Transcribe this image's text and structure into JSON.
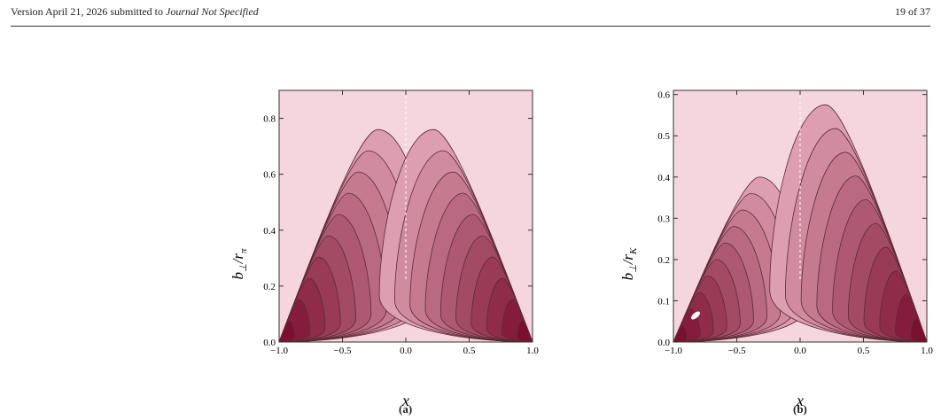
{
  "header": {
    "version": "Version April 21, 2026 submitted to",
    "journal": "Journal Not Specified",
    "page": "19 of 37"
  },
  "figures": [
    {
      "caption": "(a)",
      "ylabel_main": "b",
      "ylabel_sub1": "⊥",
      "ylabel_sep": "/r",
      "ylabel_sub2": "π",
      "xlabel": "x",
      "xticks": [
        "−1.0",
        "−0.5",
        "0.0",
        "0.5",
        "1.0"
      ],
      "yticks": [
        "0.0",
        "0.2",
        "0.4",
        "0.6",
        "0.8"
      ]
    },
    {
      "caption": "(b)",
      "ylabel_main": "b",
      "ylabel_sub1": "⊥",
      "ylabel_sep": "/r",
      "ylabel_sub2": "K",
      "xlabel": "x",
      "xticks": [
        "−1.0",
        "−0.5",
        "0.0",
        "0.5",
        "1.0"
      ],
      "yticks": [
        "0.0",
        "0.1",
        "0.2",
        "0.3",
        "0.4",
        "0.5",
        "0.6"
      ]
    }
  ],
  "chart_data": [
    {
      "type": "contour",
      "xlim": [
        -1.0,
        1.0
      ],
      "ylim": [
        0.0,
        0.9
      ],
      "xlabel": "x",
      "ylabel": "b⊥/rπ",
      "lobes": [
        {
          "side": "left",
          "peak_x": -0.22,
          "peak_y": 0.76
        },
        {
          "side": "right",
          "peak_x": 0.22,
          "peak_y": 0.76
        }
      ],
      "levels": 10,
      "colors": {
        "background": "#f5d5de",
        "darkest": "#7a0f30"
      }
    },
    {
      "type": "contour",
      "xlim": [
        -1.0,
        1.0
      ],
      "ylim": [
        0.0,
        0.61
      ],
      "xlabel": "x",
      "ylabel": "b⊥/rK",
      "lobes": [
        {
          "side": "left",
          "peak_x": -0.32,
          "peak_y": 0.4
        },
        {
          "side": "right",
          "peak_x": 0.2,
          "peak_y": 0.575
        }
      ],
      "levels": 10,
      "colors": {
        "background": "#f5d5de",
        "darkest": "#7a0f30"
      }
    }
  ]
}
